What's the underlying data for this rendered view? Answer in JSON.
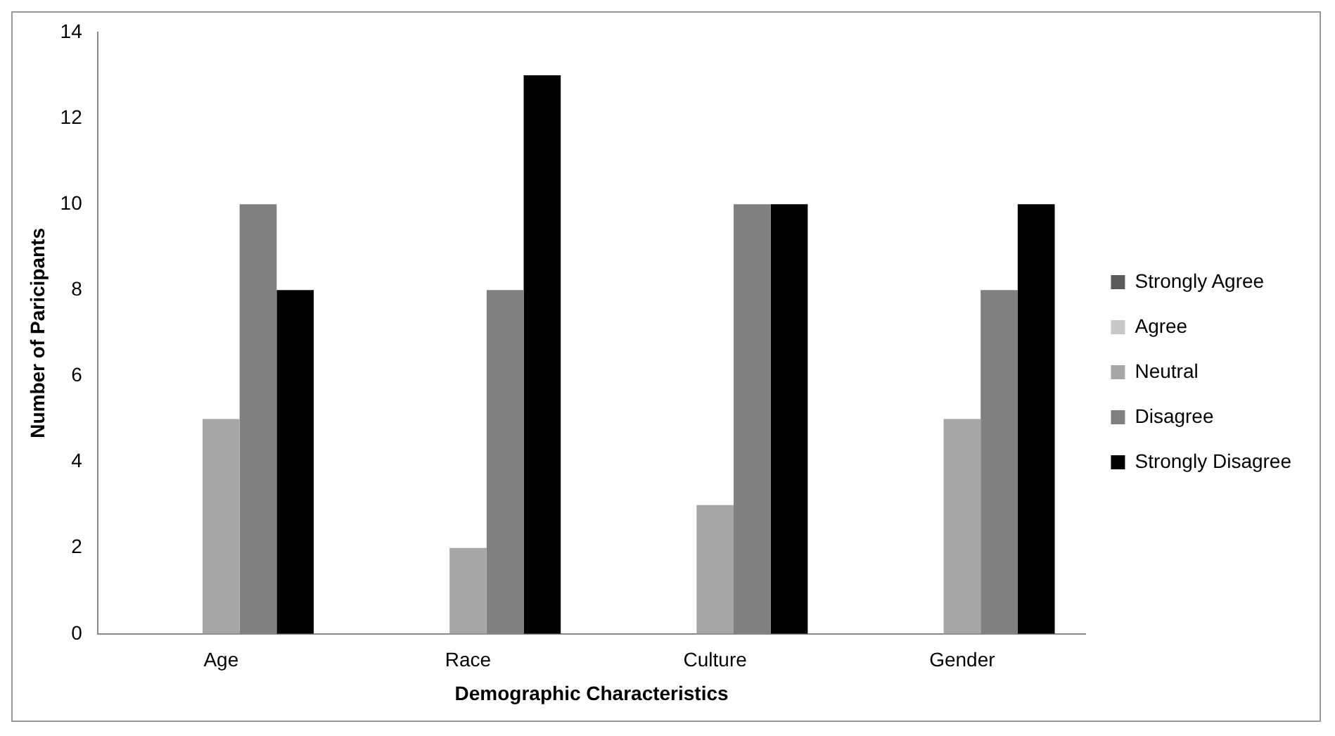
{
  "chart_data": {
    "type": "bar",
    "xlabel": "Demographic Characteristics",
    "ylabel": "Number of Paricipants",
    "categories": [
      "Age",
      "Race",
      "Culture",
      "Gender"
    ],
    "series": [
      {
        "name": "Strongly Agree",
        "color": "#5a5a5a",
        "values": [
          0,
          0,
          0,
          0
        ]
      },
      {
        "name": "Agree",
        "color": "#c8c8c8",
        "values": [
          0,
          0,
          0,
          0
        ]
      },
      {
        "name": "Neutral",
        "color": "#a6a6a6",
        "values": [
          5,
          2,
          3,
          5
        ]
      },
      {
        "name": "Disagree",
        "color": "#808080",
        "values": [
          10,
          8,
          10,
          8
        ]
      },
      {
        "name": "Strongly Disagree",
        "color": "#000000",
        "values": [
          8,
          13,
          10,
          10
        ]
      }
    ],
    "ylim": [
      0,
      14
    ],
    "yticks": [
      0,
      2,
      4,
      6,
      8,
      10,
      12,
      14
    ],
    "grid": false,
    "legend": "right"
  }
}
